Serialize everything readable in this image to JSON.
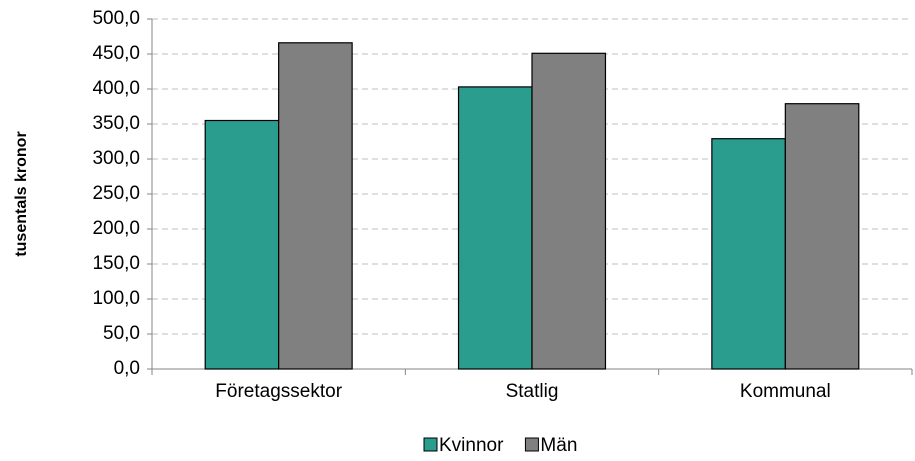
{
  "chart_data": {
    "type": "bar",
    "y_label": "tusentals kronor",
    "categories": [
      "Företagssektor",
      "Statlig",
      "Kommunal"
    ],
    "series": [
      {
        "name": "Kvinnor",
        "color": "#2a9d8f",
        "values": [
          355,
          403,
          329
        ]
      },
      {
        "name": "Män",
        "color": "#808080",
        "values": [
          466,
          451,
          379
        ]
      }
    ],
    "ylim": [
      0,
      500
    ],
    "yticks": [
      {
        "value": 0,
        "label": "0,0"
      },
      {
        "value": 50,
        "label": "50,0"
      },
      {
        "value": 100,
        "label": "100,0"
      },
      {
        "value": 150,
        "label": "150,0"
      },
      {
        "value": 200,
        "label": "200,0"
      },
      {
        "value": 250,
        "label": "250,0"
      },
      {
        "value": 300,
        "label": "300,0"
      },
      {
        "value": 350,
        "label": "350,0"
      },
      {
        "value": 400,
        "label": "400,0"
      },
      {
        "value": 450,
        "label": "450,0"
      },
      {
        "value": 500,
        "label": "500,0"
      }
    ],
    "grid": true,
    "legend": "bottom"
  }
}
